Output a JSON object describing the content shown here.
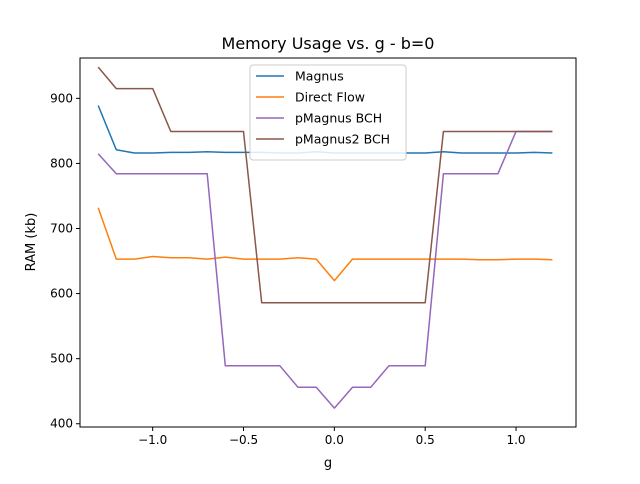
{
  "chart_data": {
    "type": "line",
    "title": "Memory Usage vs. g - b=0",
    "xlabel": "g",
    "ylabel": "RAM (kb)",
    "xlim": [
      -1.4,
      1.33
    ],
    "ylim": [
      395,
      962
    ],
    "xticks": [
      -1.0,
      -0.5,
      0.0,
      0.5,
      1.0
    ],
    "xtick_labels": [
      "−1.0",
      "−0.5",
      "0.0",
      "0.5",
      "1.0"
    ],
    "yticks": [
      400,
      500,
      600,
      700,
      800,
      900
    ],
    "ytick_labels": [
      "400",
      "500",
      "600",
      "700",
      "800",
      "900"
    ],
    "grid": false,
    "legend_position": "upper-center",
    "x": [
      -1.3,
      -1.2,
      -1.1,
      -1.0,
      -0.9,
      -0.8,
      -0.7,
      -0.6,
      -0.5,
      -0.4,
      -0.3,
      -0.2,
      -0.1,
      0.0,
      0.1,
      0.2,
      0.3,
      0.4,
      0.5,
      0.6,
      0.7,
      0.8,
      0.9,
      1.0,
      1.1,
      1.2
    ],
    "series": [
      {
        "name": "Magnus",
        "color": "#1f77b4",
        "values": [
          889,
          821,
          816,
          816,
          817,
          817,
          818,
          817,
          817,
          817,
          816,
          816,
          818,
          816,
          816,
          816,
          816,
          816,
          816,
          818,
          816,
          816,
          816,
          816,
          817,
          816
        ]
      },
      {
        "name": "Direct Flow",
        "color": "#ff7f0e",
        "values": [
          732,
          653,
          653,
          657,
          655,
          655,
          653,
          656,
          653,
          653,
          653,
          655,
          653,
          620,
          653,
          653,
          653,
          653,
          653,
          653,
          653,
          652,
          652,
          653,
          653,
          652
        ]
      },
      {
        "name": "pMagnus BCH",
        "color": "#9467bd",
        "values": [
          815,
          784,
          784,
          784,
          784,
          784,
          784,
          489,
          489,
          489,
          489,
          456,
          456,
          424,
          456,
          456,
          489,
          489,
          489,
          784,
          784,
          784,
          784,
          849,
          849,
          849
        ]
      },
      {
        "name": "pMagnus2 BCH",
        "color": "#8c564b",
        "values": [
          948,
          915,
          915,
          915,
          849,
          849,
          849,
          849,
          849,
          586,
          586,
          586,
          586,
          586,
          586,
          586,
          586,
          586,
          586,
          849,
          849,
          849,
          849,
          849,
          849,
          849
        ]
      }
    ]
  }
}
